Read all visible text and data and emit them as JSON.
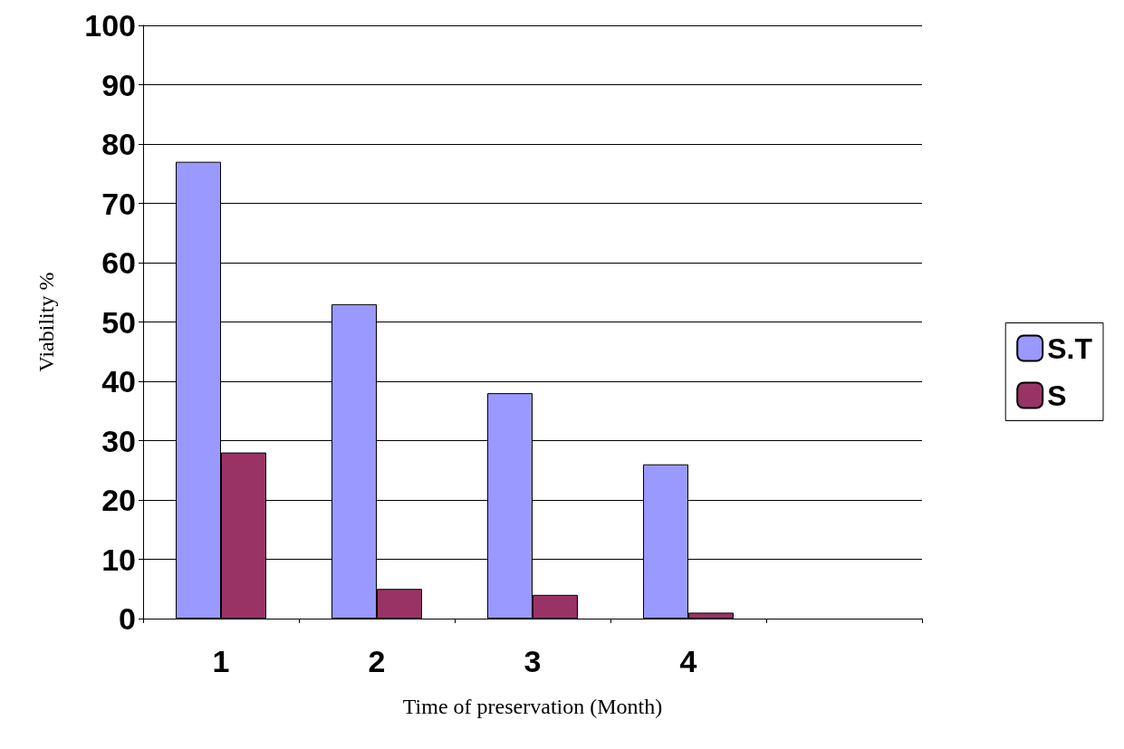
{
  "chart_data": {
    "type": "bar",
    "xlabel": "Time of preservation (Month)",
    "ylabel": "Viability %",
    "categories": [
      "1",
      "2",
      "3",
      "4",
      null
    ],
    "series": [
      {
        "name": "S.T",
        "color": "#9999ff",
        "values": [
          77,
          53,
          38,
          26,
          null
        ]
      },
      {
        "name": "S",
        "color": "#993366",
        "values": [
          28,
          5,
          4,
          1,
          null
        ]
      }
    ],
    "ylim": [
      0,
      100
    ],
    "yticks": [
      0,
      10,
      20,
      30,
      40,
      50,
      60,
      70,
      80,
      90,
      100
    ],
    "grid": "y",
    "legend": "right"
  }
}
